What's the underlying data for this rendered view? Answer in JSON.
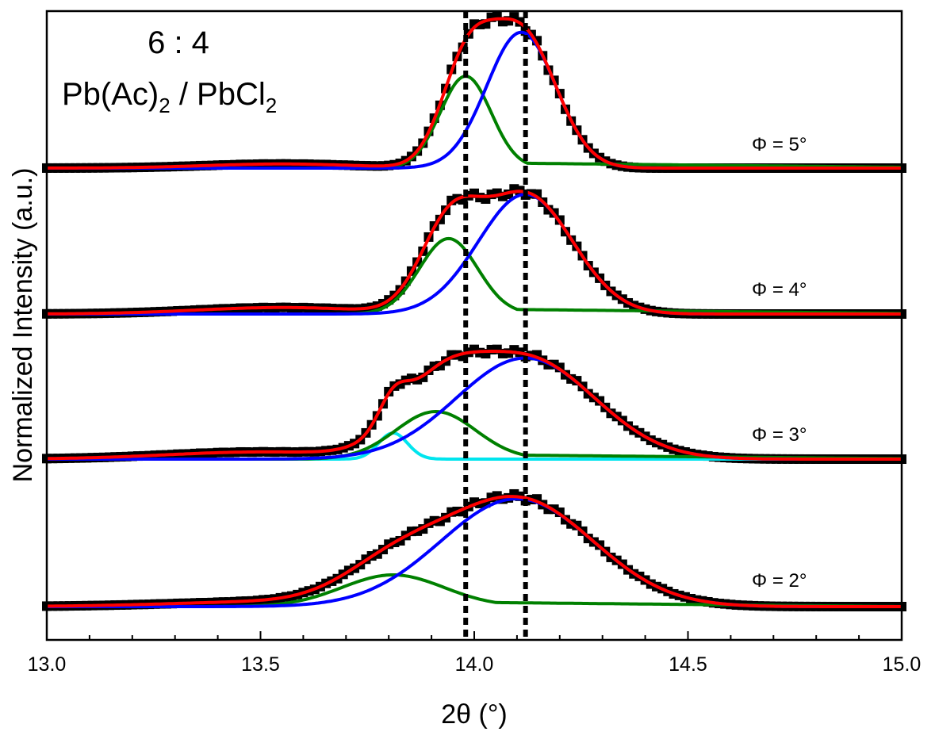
{
  "chart_data": {
    "type": "line",
    "title": "",
    "xlabel": "2θ (°)",
    "ylabel": "Normalized Intensity (a.u.)",
    "xlim": [
      13.0,
      15.0
    ],
    "x_ticks": [
      "13.0",
      "13.5",
      "14.0",
      "14.5",
      "15.0"
    ],
    "x_tick_values": [
      13.0,
      13.5,
      14.0,
      14.5,
      15.0
    ],
    "annotation": {
      "ratio": "6 : 4",
      "composition_parts": [
        "Pb(Ac)",
        "2",
        " / PbCl",
        "2"
      ]
    },
    "reference_lines_2theta": [
      13.98,
      14.12
    ],
    "colors": {
      "data": "#000000",
      "fit_total": "#ff0000",
      "peak_main": "#0000ff",
      "peak_secondary": "#008000",
      "peak_third": "#00e5ee",
      "reference_line": "#000000"
    },
    "panels": [
      {
        "label": "Φ = 5°",
        "baseline_tail": {
          "center": 13.55,
          "width": 0.18,
          "height": 0.03
        },
        "peaks": [
          {
            "name": "green",
            "center": 13.98,
            "fwhm": 0.14,
            "height": 0.67
          },
          {
            "name": "blue",
            "center": 14.11,
            "fwhm": 0.19,
            "height": 0.99
          }
        ]
      },
      {
        "label": "Φ = 4°",
        "baseline_tail": {
          "center": 13.55,
          "width": 0.2,
          "height": 0.05
        },
        "peaks": [
          {
            "name": "green",
            "center": 13.94,
            "fwhm": 0.16,
            "height": 0.58
          },
          {
            "name": "blue",
            "center": 14.12,
            "fwhm": 0.26,
            "height": 0.92
          }
        ]
      },
      {
        "label": "Φ = 3°",
        "baseline_tail": {
          "center": 13.5,
          "width": 0.22,
          "height": 0.06
        },
        "peaks": [
          {
            "name": "cyan",
            "center": 13.81,
            "fwhm": 0.08,
            "height": 0.22
          },
          {
            "name": "green",
            "center": 13.91,
            "fwhm": 0.22,
            "height": 0.4
          },
          {
            "name": "blue",
            "center": 14.12,
            "fwhm": 0.38,
            "height": 0.85
          }
        ]
      },
      {
        "label": "Φ = 2°",
        "baseline_tail": {
          "center": 13.55,
          "width": 0.25,
          "height": 0.04
        },
        "peaks": [
          {
            "name": "green",
            "center": 13.81,
            "fwhm": 0.28,
            "height": 0.25
          },
          {
            "name": "blue",
            "center": 14.1,
            "fwhm": 0.42,
            "height": 0.85
          }
        ]
      }
    ]
  }
}
